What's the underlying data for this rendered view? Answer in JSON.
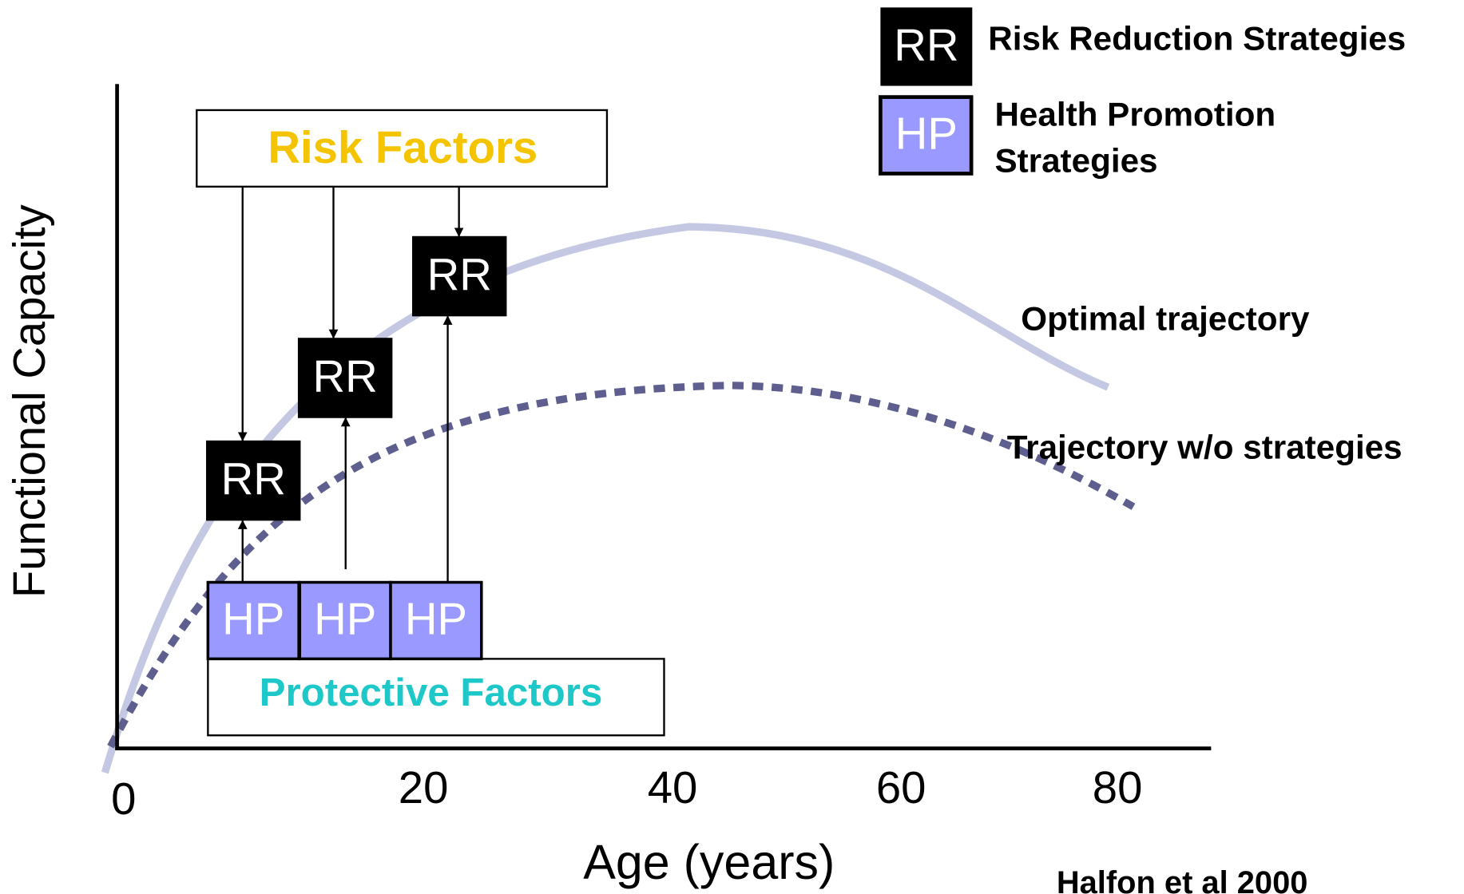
{
  "legend": [
    {
      "abbr": "RR",
      "label_lines": [
        "Risk Reduction Strategies"
      ]
    },
    {
      "abbr": "HP",
      "label_lines": [
        "Health Promotion",
        "Strategies"
      ]
    }
  ],
  "axes": {
    "y_label": "Functional Capacity",
    "x_label": "Age (years)",
    "x_ticks": [
      "0",
      "20",
      "40",
      "60",
      "80"
    ]
  },
  "risk_factors": "Risk Factors",
  "protective_factors": "Protective Factors",
  "rr_boxes": [
    "RR",
    "RR",
    "RR"
  ],
  "hp_boxes": [
    "HP",
    "HP",
    "HP"
  ],
  "curves": [
    "Optimal trajectory",
    "Trajectory w/o strategies"
  ],
  "citation": "Halfon et al 2000"
}
